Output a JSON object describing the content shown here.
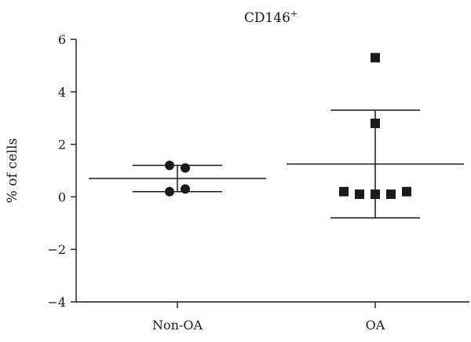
{
  "chart_data": {
    "type": "scatter",
    "title": "CD146",
    "title_superscript": "+",
    "ylabel": "% of cells",
    "xlabel": "",
    "ylim": [
      -4,
      6
    ],
    "yticks": [
      -4,
      -2,
      0,
      2,
      4,
      6
    ],
    "ytick_labels": [
      "−4",
      "−2",
      "0",
      "2",
      "4",
      "6"
    ],
    "categories": [
      "Non-OA",
      "OA"
    ],
    "grid": false,
    "series": [
      {
        "category": "Non-OA",
        "marker": "circle",
        "points": [
          {
            "offset": -0.5,
            "y": 1.2
          },
          {
            "offset": 0.5,
            "y": 1.1
          },
          {
            "offset": -0.5,
            "y": 0.2
          },
          {
            "offset": 0.5,
            "y": 0.3
          }
        ],
        "mean": 0.7,
        "err_low": 0.2,
        "err_high": 1.2
      },
      {
        "category": "OA",
        "marker": "square",
        "points": [
          {
            "offset": 0,
            "y": 5.3
          },
          {
            "offset": 0,
            "y": 2.8
          },
          {
            "offset": -2,
            "y": 0.2
          },
          {
            "offset": -1,
            "y": 0.1
          },
          {
            "offset": 0,
            "y": 0.1
          },
          {
            "offset": 1,
            "y": 0.1
          },
          {
            "offset": 2,
            "y": 0.2
          }
        ],
        "mean": 1.25,
        "err_low": -0.8,
        "err_high": 3.3
      }
    ]
  }
}
